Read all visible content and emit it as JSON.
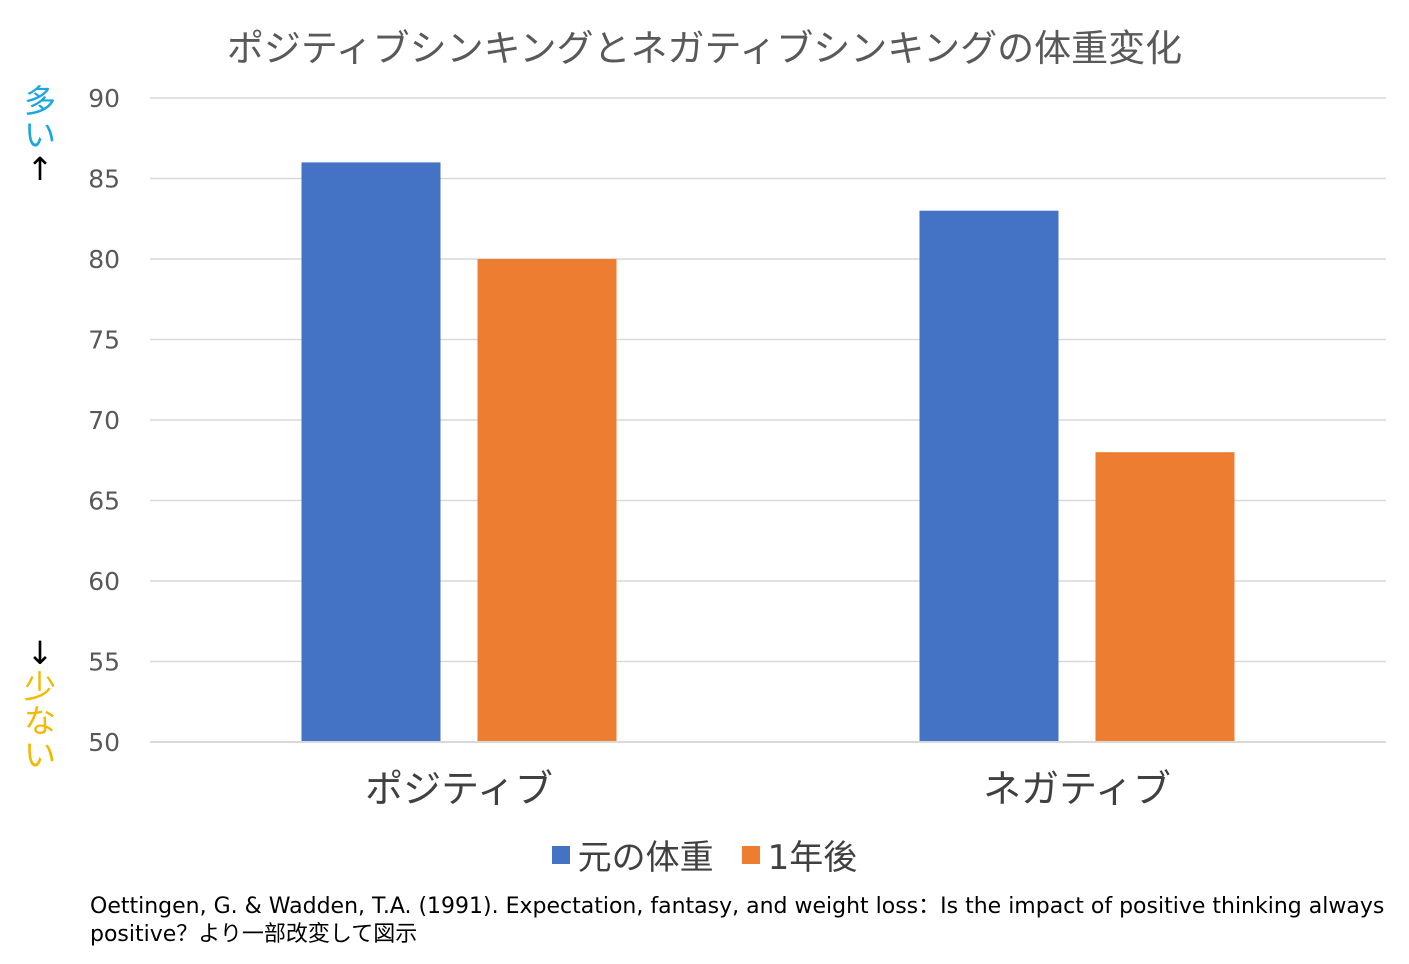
{
  "chart_data": {
    "type": "bar",
    "title": "ポジティブシンキングとネガティブシンキングの体重変化",
    "categories": [
      "ポジティブ",
      "ネガティブ"
    ],
    "series": [
      {
        "name": "元の体重",
        "color": "#4472C4",
        "values": [
          86,
          83
        ]
      },
      {
        "name": "1年後",
        "color": "#ED7D31",
        "values": [
          80,
          68
        ]
      }
    ],
    "ylim": [
      50,
      90
    ],
    "yticks": [
      50,
      55,
      60,
      65,
      70,
      75,
      80,
      85,
      90
    ],
    "grid": true,
    "legend_position": "bottom",
    "annotations": {
      "high_label": "多い",
      "high_arrow": "↑",
      "low_arrow": "↓",
      "low_label": "少ない"
    },
    "source_note": "Oettingen, G. & Wadden, T.A. (1991). Expectation, fantasy, and weight loss：Is the impact of positive thinking always positive？より一部改変して図示"
  }
}
